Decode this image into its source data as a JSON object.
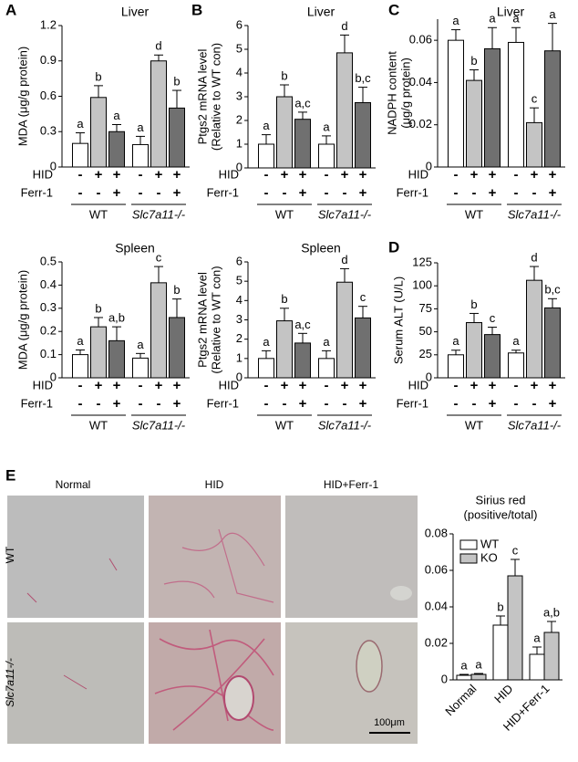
{
  "chart_data": [
    {
      "type": "bar",
      "panel": "A",
      "title": "Liver",
      "ylabel": [
        "MDA (μg/g protein)"
      ],
      "values": [
        0.2,
        0.59,
        0.3,
        0.19,
        0.9,
        0.5
      ],
      "errors": [
        0.09,
        0.1,
        0.06,
        0.07,
        0.05,
        0.15
      ],
      "letters": [
        "a",
        "b",
        "a",
        "a",
        "d",
        "b"
      ],
      "colors": [
        "#ffffff",
        "#c4c4c4",
        "#707070"
      ],
      "ylim": [
        0,
        1.2
      ],
      "yticks": [
        0,
        0.3,
        0.6,
        0.9,
        1.2
      ],
      "conditions": [
        {
          "name": "HID",
          "values": [
            "-",
            "+",
            "+",
            "-",
            "+",
            "+"
          ]
        },
        {
          "name": "Ferr-1",
          "values": [
            "-",
            "-",
            "+",
            "-",
            "-",
            "+"
          ]
        }
      ],
      "groups": [
        "WT",
        "Slc7a11-/-"
      ]
    },
    {
      "type": "bar",
      "panel": "B",
      "title": "Liver",
      "ylabel": [
        "Ptgs2 mRNA level",
        "(Relative to WT con)"
      ],
      "values": [
        1.0,
        3.0,
        2.05,
        1.0,
        4.85,
        2.75
      ],
      "errors": [
        0.4,
        0.5,
        0.3,
        0.35,
        0.75,
        0.65
      ],
      "letters": [
        "a",
        "b",
        "a,c",
        "a",
        "d",
        "b,c"
      ],
      "colors": [
        "#ffffff",
        "#c4c4c4",
        "#707070"
      ],
      "ylim": [
        0,
        6
      ],
      "yticks": [
        0,
        1,
        2,
        3,
        4,
        5,
        6
      ],
      "conditions": [
        {
          "name": "HID",
          "values": [
            "-",
            "+",
            "+",
            "-",
            "+",
            "+"
          ]
        },
        {
          "name": "Ferr-1",
          "values": [
            "-",
            "-",
            "+",
            "-",
            "-",
            "+"
          ]
        }
      ],
      "groups": [
        "WT",
        "Slc7a11-/-"
      ]
    },
    {
      "type": "bar",
      "panel": "C",
      "title": "Liver",
      "ylabel": [
        "NADPH content",
        "(μg/g protein)"
      ],
      "values": [
        0.06,
        0.041,
        0.056,
        0.059,
        0.021,
        0.055
      ],
      "errors": [
        0.005,
        0.005,
        0.01,
        0.007,
        0.007,
        0.013
      ],
      "letters": [
        "a",
        "b",
        "a",
        "a",
        "c",
        "a"
      ],
      "colors": [
        "#ffffff",
        "#c4c4c4",
        "#707070"
      ],
      "ylim": [
        0,
        0.07
      ],
      "yticks": [
        0,
        0.02,
        0.04,
        0.06
      ],
      "conditions": [
        {
          "name": "HID",
          "values": [
            "-",
            "+",
            "+",
            "-",
            "+",
            "+"
          ]
        },
        {
          "name": "Ferr-1",
          "values": [
            "-",
            "-",
            "+",
            "-",
            "-",
            "+"
          ]
        }
      ],
      "groups": [
        "WT",
        "Slc7a11-/-"
      ]
    },
    {
      "type": "bar",
      "title": "Spleen",
      "ylabel": [
        "MDA (μg/g protein)"
      ],
      "values": [
        0.1,
        0.22,
        0.16,
        0.085,
        0.41,
        0.26
      ],
      "errors": [
        0.02,
        0.04,
        0.06,
        0.02,
        0.07,
        0.08
      ],
      "letters": [
        "a",
        "b",
        "a,b",
        "a",
        "c",
        "b"
      ],
      "colors": [
        "#ffffff",
        "#c4c4c4",
        "#707070"
      ],
      "ylim": [
        0,
        0.5
      ],
      "yticks": [
        0,
        0.1,
        0.2,
        0.3,
        0.4,
        0.5
      ],
      "conditions": [
        {
          "name": "HID",
          "values": [
            "-",
            "+",
            "+",
            "-",
            "+",
            "+"
          ]
        },
        {
          "name": "Ferr-1",
          "values": [
            "-",
            "-",
            "+",
            "-",
            "-",
            "+"
          ]
        }
      ],
      "groups": [
        "WT",
        "Slc7a11-/-"
      ]
    },
    {
      "type": "bar",
      "title": "Spleen",
      "ylabel": [
        "Ptgs2 mRNA level",
        "(Relative to WT con)"
      ],
      "values": [
        1.0,
        2.95,
        1.8,
        1.0,
        4.95,
        3.1
      ],
      "errors": [
        0.4,
        0.65,
        0.5,
        0.4,
        0.7,
        0.6
      ],
      "letters": [
        "a",
        "b",
        "a,c",
        "a",
        "d",
        "c"
      ],
      "colors": [
        "#ffffff",
        "#c4c4c4",
        "#707070"
      ],
      "ylim": [
        0,
        6
      ],
      "yticks": [
        0,
        1,
        2,
        3,
        4,
        5,
        6
      ],
      "conditions": [
        {
          "name": "HID",
          "values": [
            "-",
            "+",
            "+",
            "-",
            "+",
            "+"
          ]
        },
        {
          "name": "Ferr-1",
          "values": [
            "-",
            "-",
            "+",
            "-",
            "-",
            "+"
          ]
        }
      ],
      "groups": [
        "WT",
        "Slc7a11-/-"
      ]
    },
    {
      "type": "bar",
      "panel": "D",
      "ylabel": [
        "Serum ALT (U/L)"
      ],
      "values": [
        25,
        60,
        47,
        27,
        106,
        76
      ],
      "errors": [
        5,
        10,
        8,
        3,
        15,
        10
      ],
      "letters": [
        "a",
        "b",
        "c",
        "a",
        "d",
        "b,c"
      ],
      "colors": [
        "#ffffff",
        "#c4c4c4",
        "#707070"
      ],
      "ylim": [
        0,
        125
      ],
      "yticks": [
        0,
        25,
        50,
        75,
        100,
        125
      ],
      "conditions": [
        {
          "name": "HID",
          "values": [
            "-",
            "+",
            "+",
            "-",
            "+",
            "+"
          ]
        },
        {
          "name": "Ferr-1",
          "values": [
            "-",
            "-",
            "+",
            "-",
            "-",
            "+"
          ]
        }
      ],
      "groups": [
        "WT",
        "Slc7a11-/-"
      ]
    },
    {
      "type": "grouped_bar",
      "panel": "E",
      "title": [
        "Sirius red",
        "(positive/total)"
      ],
      "categories": [
        "Normal",
        "HID",
        "HID+Ferr-1"
      ],
      "series": [
        {
          "name": "WT",
          "color": "#ffffff",
          "values": [
            0.0025,
            0.03,
            0.014
          ],
          "errors": [
            0.0005,
            0.005,
            0.004
          ],
          "letters": [
            "a",
            "b",
            "a"
          ]
        },
        {
          "name": "KO",
          "color": "#c4c4c4",
          "values": [
            0.003,
            0.057,
            0.026
          ],
          "errors": [
            0.0005,
            0.009,
            0.006
          ],
          "letters": [
            "a",
            "c",
            "a,b"
          ]
        }
      ],
      "ylim": [
        0,
        0.08
      ],
      "yticks": [
        0,
        0.02,
        0.04,
        0.06,
        0.08
      ],
      "legend": "upper left"
    }
  ],
  "micrographs": {
    "columns": [
      "Normal",
      "HID",
      "HID+Ferr-1"
    ],
    "rows": [
      "WT",
      "Slc7a11-/-"
    ],
    "scale_bar": "100μm"
  }
}
